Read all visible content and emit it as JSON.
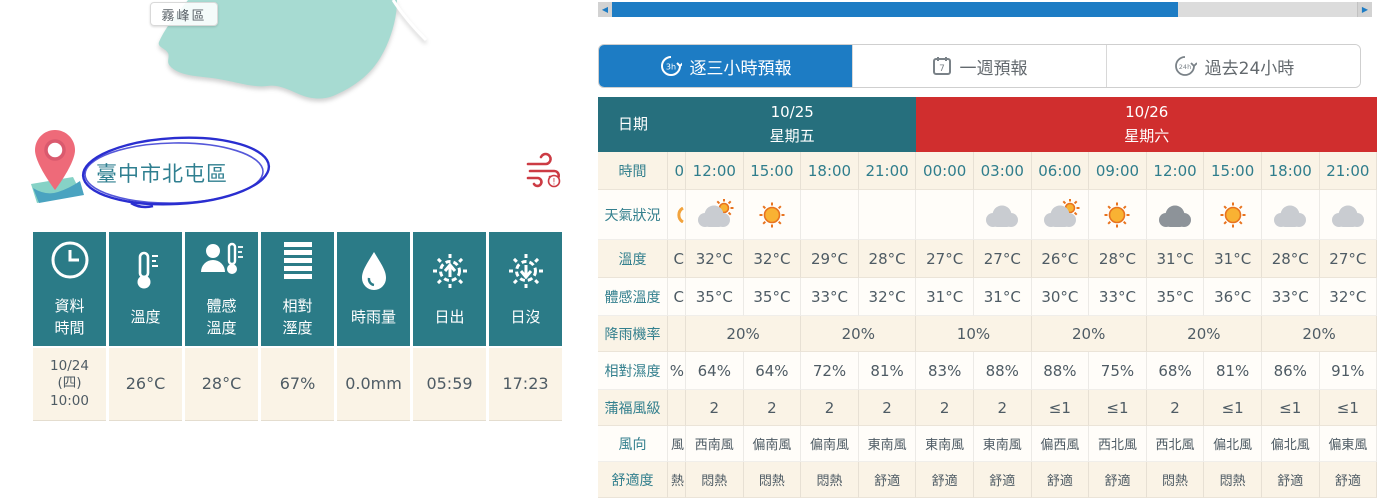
{
  "map": {
    "district_label": "霧峰區"
  },
  "location": {
    "name": "臺中市北屯區"
  },
  "wind_advisory": {
    "icon": "wind-advisory-icon"
  },
  "current": {
    "columns": [
      {
        "icon": "clock",
        "label": "資料\n時間",
        "value": "10/24\n(四)\n10:00"
      },
      {
        "icon": "thermometer",
        "label": "溫度",
        "value": "26°C"
      },
      {
        "icon": "feels-like",
        "label": "體感\n溫度",
        "value": "28°C"
      },
      {
        "icon": "humidity-bars",
        "label": "相對\n溼度",
        "value": "67%"
      },
      {
        "icon": "droplet",
        "label": "時雨量",
        "value": "0.0mm"
      },
      {
        "icon": "sunrise",
        "label": "日出",
        "value": "05:59"
      },
      {
        "icon": "sunset",
        "label": "日沒",
        "value": "17:23"
      }
    ]
  },
  "forecast": {
    "tabs": [
      {
        "label": "逐三小時預報",
        "icon": "clock-3h",
        "badge": "3h",
        "active": true
      },
      {
        "label": "一週預報",
        "icon": "calendar-7",
        "badge": "7",
        "active": false
      },
      {
        "label": "過去24小時",
        "icon": "clock-24h",
        "badge": "24h",
        "active": false
      }
    ],
    "row_labels": {
      "date": "日期",
      "time": "時間",
      "weather": "天氣狀況",
      "temp": "溫度",
      "feels": "體感溫度",
      "rain": "降雨機率",
      "humidity": "相對濕度",
      "beaufort": "蒲福風級",
      "wind": "風向",
      "comfort": "舒適度"
    },
    "dates": [
      {
        "label": "10/25\n星期五",
        "color": "#266f7d",
        "span_columns": 4
      },
      {
        "label": "10/26\n星期六",
        "color": "#d02e2e",
        "span_columns": 8
      }
    ],
    "times": [
      "12:00",
      "15:00",
      "18:00",
      "21:00",
      "00:00",
      "03:00",
      "06:00",
      "09:00",
      "12:00",
      "15:00",
      "18:00",
      "21:00"
    ],
    "weather_icons": [
      "cloud-sun",
      "sunny",
      "moon",
      "moon",
      "moon",
      "cloud-moon",
      "cloud-sun",
      "sunny",
      "cloudy",
      "sunny",
      "cloud-moon",
      "cloud-moon"
    ],
    "temperature": [
      "32°C",
      "32°C",
      "29°C",
      "28°C",
      "27°C",
      "27°C",
      "26°C",
      "28°C",
      "31°C",
      "31°C",
      "28°C",
      "27°C"
    ],
    "feels_like": [
      "35°C",
      "35°C",
      "33°C",
      "32°C",
      "31°C",
      "31°C",
      "30°C",
      "33°C",
      "35°C",
      "36°C",
      "33°C",
      "32°C"
    ],
    "rain_probability": [
      "20%",
      "20%",
      "10%",
      "20%",
      "20%",
      "20%"
    ],
    "humidity": [
      "64%",
      "64%",
      "72%",
      "81%",
      "83%",
      "88%",
      "88%",
      "75%",
      "68%",
      "81%",
      "86%",
      "91%"
    ],
    "beaufort": [
      "2",
      "2",
      "2",
      "2",
      "2",
      "2",
      "≤1",
      "≤1",
      "2",
      "≤1",
      "≤1",
      "≤1"
    ],
    "wind_direction": [
      "西南風",
      "偏南風",
      "偏南風",
      "東南風",
      "東南風",
      "東南風",
      "偏西風",
      "西北風",
      "西北風",
      "偏北風",
      "偏北風",
      "偏東風"
    ],
    "comfort": [
      "悶熱",
      "悶熱",
      "悶熱",
      "舒適",
      "舒適",
      "舒適",
      "舒適",
      "舒適",
      "悶熱",
      "悶熱",
      "舒適",
      "舒適"
    ],
    "cut_column": {
      "time": "0",
      "temp": "C",
      "feels": "C",
      "humidity": "%",
      "wind": "風",
      "comfort": "熱"
    }
  },
  "colors": {
    "teal_header": "#266f7d",
    "teal_table": "#2b7b87",
    "red_header": "#d02e2e",
    "accent_blue": "#1d7cc4",
    "cream_row": "#faf3e6",
    "label_teal": "#34808e"
  }
}
